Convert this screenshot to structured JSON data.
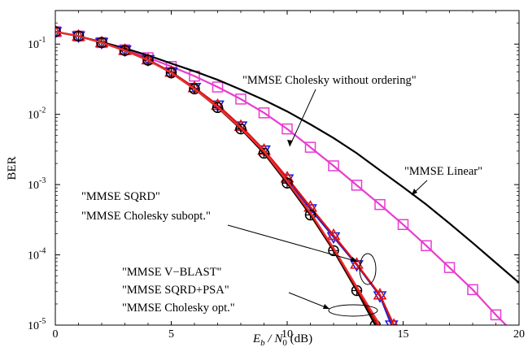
{
  "chart_data": {
    "type": "line",
    "xlabel": {
      "main": "E",
      "sub1": "b",
      "mid": " / N",
      "sub2": "0",
      "tail": " (dB)"
    },
    "ylabel": "BER",
    "xlim": [
      0,
      20
    ],
    "ylim": [
      1e-05,
      0.3
    ],
    "yscale": "log",
    "grid": false,
    "x_ticks": [
      "0",
      "5",
      "10",
      "15",
      "20"
    ],
    "y_ticks": [
      {
        "base": "10",
        "exp": "-1",
        "value": 0.1
      },
      {
        "base": "10",
        "exp": "-2",
        "value": 0.01
      },
      {
        "base": "10",
        "exp": "-3",
        "value": 0.001
      },
      {
        "base": "10",
        "exp": "-4",
        "value": 0.0001
      },
      {
        "base": "10",
        "exp": "-5",
        "value": 1e-05
      }
    ],
    "series": [
      {
        "key": "linear",
        "color": "#e83cd0",
        "marker": "square",
        "x": [
          0,
          1,
          2,
          3,
          4,
          5,
          6,
          7,
          8,
          9,
          10,
          11,
          12,
          13,
          14,
          15,
          16,
          17,
          18,
          19,
          20
        ],
        "y": [
          0.15,
          0.13,
          0.105,
          0.083,
          0.064,
          0.048,
          0.035,
          0.0245,
          0.0165,
          0.0105,
          0.0062,
          0.0034,
          0.00185,
          0.00098,
          0.00052,
          0.00027,
          0.000135,
          6.6e-05,
          3.2e-05,
          1.4e-05,
          6.5e-06
        ]
      },
      {
        "key": "cholesky_no_order",
        "color": "#000000",
        "marker": "none",
        "x": [
          0,
          1,
          2,
          3,
          4,
          5,
          6,
          7,
          8,
          9,
          10,
          11,
          12,
          13,
          14,
          15,
          16,
          17,
          18,
          19,
          20
        ],
        "y": [
          0.15,
          0.13,
          0.107,
          0.087,
          0.069,
          0.053,
          0.041,
          0.031,
          0.0225,
          0.016,
          0.011,
          0.0072,
          0.0046,
          0.0028,
          0.0016,
          0.00092,
          0.00052,
          0.00028,
          0.000148,
          7.7e-05,
          4e-05
        ]
      },
      {
        "key": "sqrd",
        "color": "#1c1cd8",
        "marker": "triangle-down",
        "x": [
          0,
          1,
          2,
          3,
          4,
          5,
          6,
          7,
          8,
          9,
          10,
          11,
          12,
          13,
          14,
          14.5
        ],
        "y": [
          0.15,
          0.13,
          0.105,
          0.082,
          0.06,
          0.04,
          0.024,
          0.0135,
          0.0068,
          0.0031,
          0.0012,
          0.00045,
          0.00018,
          7.2e-05,
          2.6e-05,
          1e-05
        ]
      },
      {
        "key": "cholesky_subopt",
        "color": "#e01010",
        "marker": "triangle-up",
        "x": [
          0,
          1,
          2,
          3,
          4,
          5,
          6,
          7,
          8,
          9,
          10,
          11,
          12,
          13,
          14,
          14.6
        ],
        "y": [
          0.15,
          0.13,
          0.105,
          0.082,
          0.06,
          0.04,
          0.024,
          0.0135,
          0.0068,
          0.0031,
          0.00125,
          0.00048,
          0.00019,
          7.4e-05,
          2.7e-05,
          1e-05
        ]
      },
      {
        "key": "vblast",
        "color": "#000000",
        "marker": "circle-plus",
        "x": [
          0,
          1,
          2,
          3,
          4,
          5,
          6,
          7,
          8,
          9,
          10,
          11,
          12,
          13,
          13.8
        ],
        "y": [
          0.15,
          0.13,
          0.105,
          0.081,
          0.059,
          0.039,
          0.023,
          0.0125,
          0.0062,
          0.0028,
          0.00105,
          0.00037,
          0.000115,
          3.1e-05,
          1e-05
        ]
      },
      {
        "key": "sqrd_psa",
        "color": "#c00000",
        "marker": "none",
        "x": [
          0,
          1,
          2,
          3,
          4,
          5,
          6,
          7,
          8,
          9,
          10,
          11,
          12,
          13,
          13.9
        ],
        "y": [
          0.15,
          0.13,
          0.105,
          0.081,
          0.059,
          0.039,
          0.023,
          0.0126,
          0.0063,
          0.0029,
          0.0011,
          0.00039,
          0.00012,
          3.3e-05,
          1e-05
        ]
      },
      {
        "key": "cholesky_opt",
        "color": "#e83030",
        "marker": "none",
        "x": [
          0,
          1,
          2,
          3,
          4,
          5,
          6,
          7,
          8,
          9,
          10,
          11,
          12,
          13,
          14
        ],
        "y": [
          0.15,
          0.13,
          0.105,
          0.081,
          0.059,
          0.039,
          0.023,
          0.0127,
          0.0064,
          0.003,
          0.00112,
          0.0004,
          0.000125,
          3.5e-05,
          1e-05
        ]
      }
    ],
    "annotations": {
      "cholesky_no_order": "\"MMSE Cholesky without ordering\"",
      "linear": "\"MMSE Linear\"",
      "sqrd": "\"MMSE SQRD\"",
      "cholesky_subopt": "\"MMSE Cholesky subopt.\"",
      "vblast": "\"MMSE V−BLAST\"",
      "sqrd_psa": "\"MMSE SQRD+PSA\"",
      "cholesky_opt": "\"MMSE Cholesky opt.\""
    }
  }
}
